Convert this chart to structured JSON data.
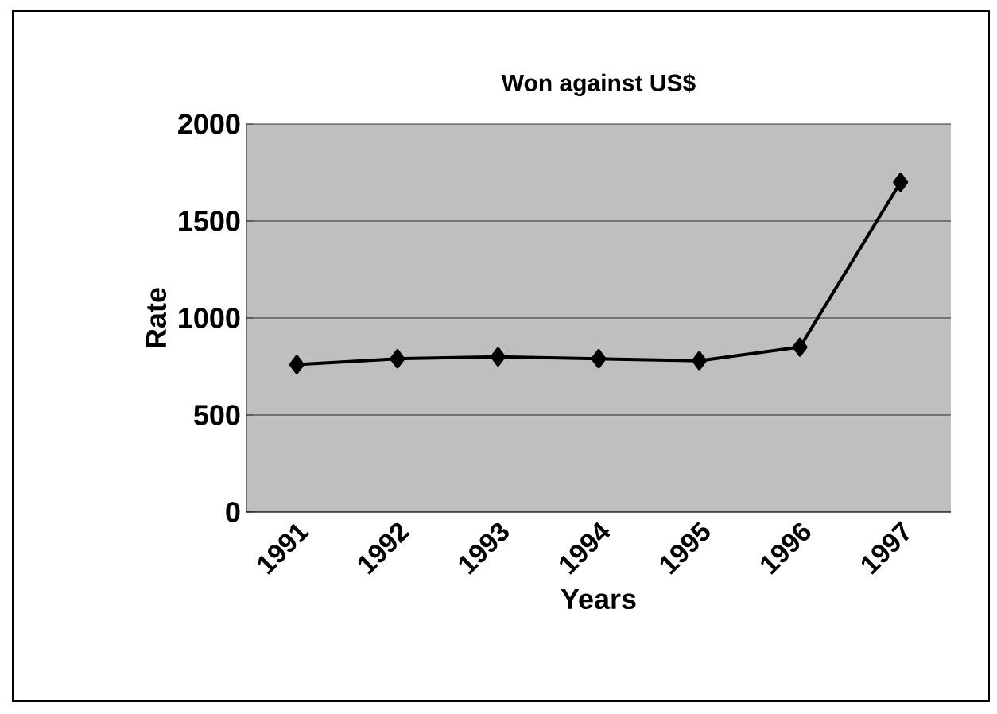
{
  "chart_data": {
    "type": "line",
    "title": "Won against US$",
    "xlabel": "Years",
    "ylabel": "Rate",
    "categories": [
      "1991",
      "1992",
      "1993",
      "1994",
      "1995",
      "1996",
      "1997"
    ],
    "series": [
      {
        "color": "#000000",
        "values": [
          760,
          790,
          800,
          790,
          780,
          850,
          1700
        ]
      }
    ],
    "ylim": [
      0,
      2000
    ],
    "yticks": [
      0,
      500,
      1000,
      1500,
      2000
    ],
    "grid": "y",
    "marker": "diamond",
    "line_style": "solid"
  }
}
